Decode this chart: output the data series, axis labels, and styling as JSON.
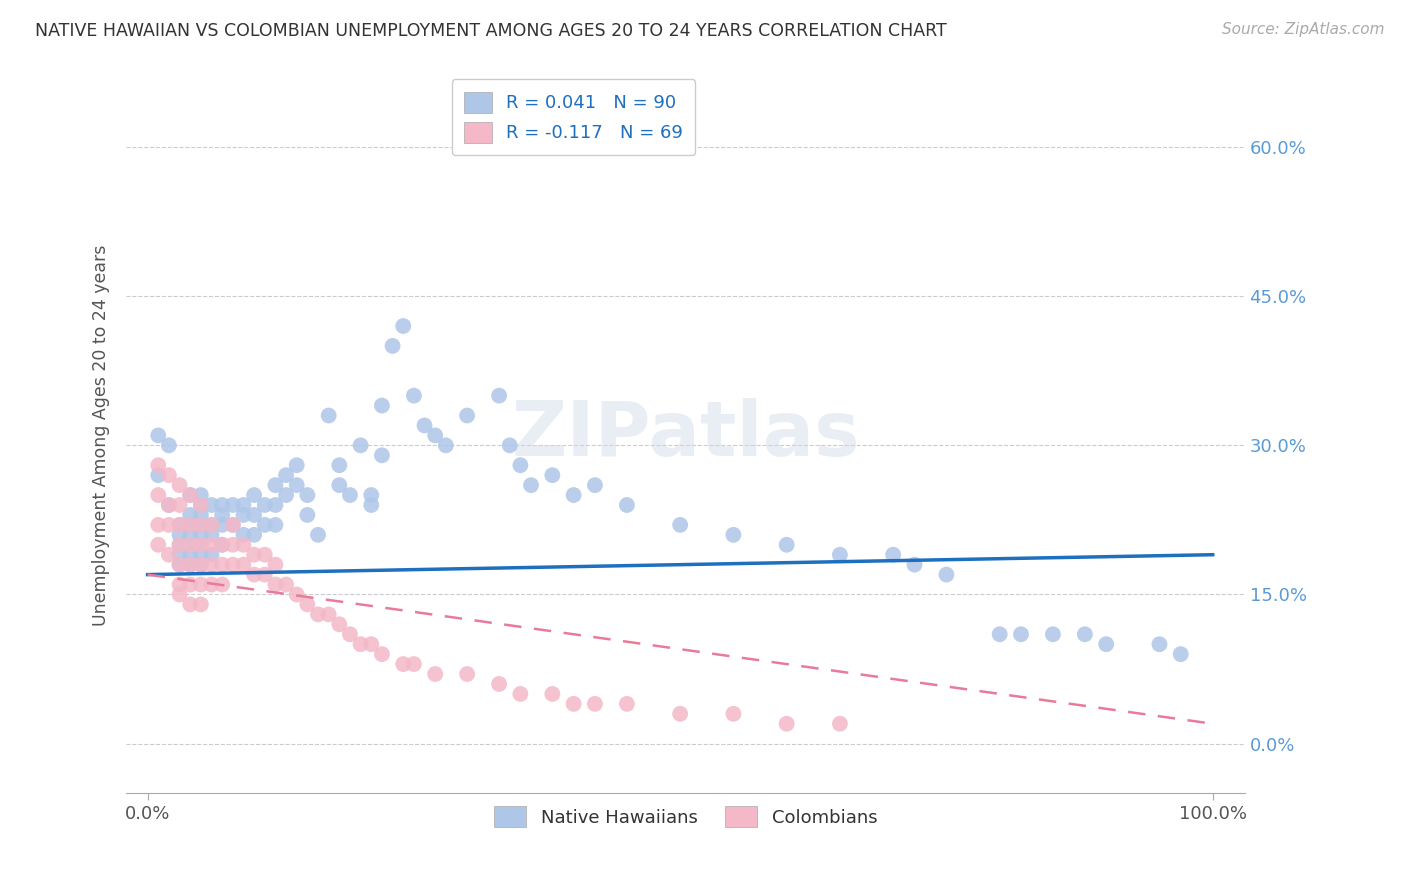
{
  "title": "NATIVE HAWAIIAN VS COLOMBIAN UNEMPLOYMENT AMONG AGES 20 TO 24 YEARS CORRELATION CHART",
  "source": "Source: ZipAtlas.com",
  "ylabel": "Unemployment Among Ages 20 to 24 years",
  "hawaiian_color": "#aec6e8",
  "colombian_color": "#f4b8c8",
  "hawaiian_line_color": "#1f6fbf",
  "colombian_line_color": "#e87b9a",
  "legend1_label": "R = 0.041   N = 90",
  "legend2_label": "R = -0.117   N = 69",
  "hawaiian_points_x": [
    1,
    1,
    2,
    2,
    3,
    3,
    3,
    3,
    3,
    4,
    4,
    4,
    4,
    4,
    4,
    4,
    5,
    5,
    5,
    5,
    5,
    5,
    5,
    5,
    6,
    6,
    6,
    6,
    7,
    7,
    7,
    7,
    8,
    8,
    9,
    9,
    9,
    10,
    10,
    10,
    11,
    11,
    12,
    12,
    12,
    13,
    13,
    14,
    14,
    15,
    15,
    16,
    17,
    18,
    18,
    19,
    20,
    21,
    21,
    22,
    22,
    23,
    24,
    25,
    26,
    27,
    28,
    30,
    33,
    34,
    35,
    36,
    38,
    40,
    42,
    45,
    50,
    55,
    60,
    65,
    70,
    72,
    75,
    80,
    82,
    85,
    88,
    90,
    95,
    97
  ],
  "hawaiian_points_y": [
    27,
    31,
    30,
    24,
    22,
    21,
    20,
    19,
    18,
    25,
    23,
    22,
    21,
    20,
    19,
    18,
    25,
    24,
    23,
    22,
    21,
    20,
    19,
    18,
    24,
    22,
    21,
    19,
    24,
    23,
    22,
    20,
    24,
    22,
    24,
    23,
    21,
    25,
    23,
    21,
    24,
    22,
    26,
    24,
    22,
    27,
    25,
    28,
    26,
    25,
    23,
    21,
    33,
    28,
    26,
    25,
    30,
    25,
    24,
    34,
    29,
    40,
    42,
    35,
    32,
    31,
    30,
    33,
    35,
    30,
    28,
    26,
    27,
    25,
    26,
    24,
    22,
    21,
    20,
    19,
    19,
    18,
    17,
    11,
    11,
    11,
    11,
    10,
    10,
    9
  ],
  "colombian_points_x": [
    1,
    1,
    1,
    1,
    2,
    2,
    2,
    2,
    3,
    3,
    3,
    3,
    3,
    3,
    3,
    4,
    4,
    4,
    4,
    4,
    4,
    5,
    5,
    5,
    5,
    5,
    5,
    6,
    6,
    6,
    6,
    7,
    7,
    7,
    8,
    8,
    8,
    9,
    9,
    10,
    10,
    11,
    11,
    12,
    12,
    13,
    14,
    15,
    16,
    17,
    18,
    19,
    20,
    21,
    22,
    24,
    25,
    27,
    30,
    33,
    35,
    38,
    40,
    42,
    45,
    50,
    55,
    60,
    65
  ],
  "colombian_points_y": [
    28,
    25,
    22,
    20,
    27,
    24,
    22,
    19,
    26,
    24,
    22,
    20,
    18,
    16,
    15,
    25,
    22,
    20,
    18,
    16,
    14,
    24,
    22,
    20,
    18,
    16,
    14,
    22,
    20,
    18,
    16,
    20,
    18,
    16,
    22,
    20,
    18,
    20,
    18,
    19,
    17,
    19,
    17,
    18,
    16,
    16,
    15,
    14,
    13,
    13,
    12,
    11,
    10,
    10,
    9,
    8,
    8,
    7,
    7,
    6,
    5,
    5,
    4,
    4,
    4,
    3,
    3,
    2,
    2
  ],
  "xlim": [
    -2,
    103
  ],
  "ylim": [
    -5,
    67
  ],
  "yticks": [
    0,
    15,
    30,
    45,
    60
  ],
  "xticks": [
    0,
    100
  ]
}
